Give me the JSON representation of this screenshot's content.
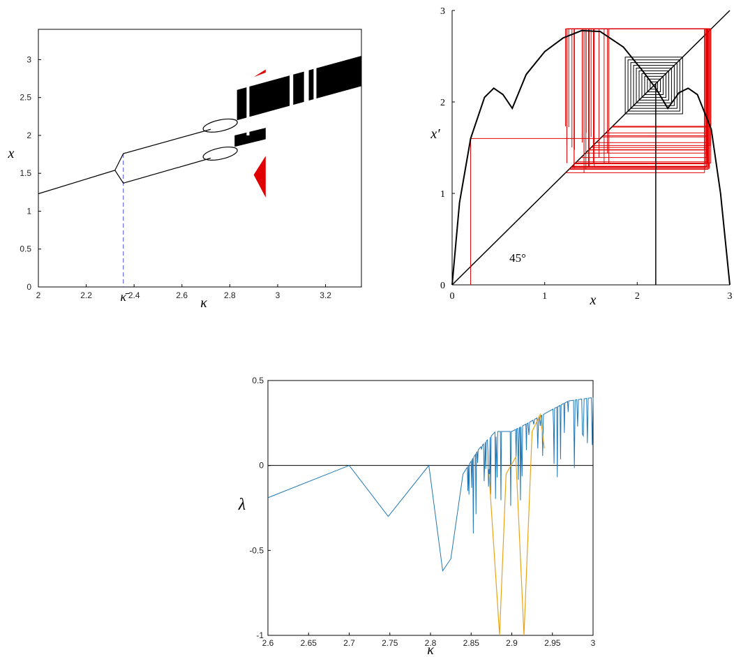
{
  "chart_data": [
    {
      "type": "scatter",
      "xlabel": "κ",
      "ylabel": "x",
      "xlim": [
        2,
        3.35
      ],
      "ylim": [
        0,
        3.4
      ],
      "xticks": [
        "2",
        "2.2",
        "2.4",
        "2.6",
        "2.8",
        "3",
        "3.2"
      ],
      "yticks": [
        "0",
        "0.5",
        "1",
        "1.5",
        "2",
        "2.5",
        "3"
      ],
      "marker_label": "κ̄",
      "marker_x": 2.355,
      "colors": {
        "main": "#000000",
        "highlight": "#e00000",
        "marker": "#4a4ad0"
      },
      "branches": {
        "single": [
          [
            2.0,
            1.23
          ],
          [
            2.32,
            1.54
          ]
        ],
        "period2_upper": [
          [
            2.32,
            1.54
          ],
          [
            2.355,
            1.76
          ],
          [
            2.72,
            2.08
          ]
        ],
        "period2_lower": [
          [
            2.32,
            1.54
          ],
          [
            2.355,
            1.37
          ],
          [
            2.72,
            1.7
          ]
        ]
      }
    },
    {
      "type": "line",
      "xlabel": "x",
      "ylabel": "x′",
      "xlim": [
        0,
        3
      ],
      "ylim": [
        0,
        3
      ],
      "xticks": [
        "0",
        "1",
        "2",
        "3"
      ],
      "yticks": [
        "0",
        "1",
        "2",
        "3"
      ],
      "annotation": "45°",
      "colors": {
        "map": "#000000",
        "cobweb": "#e00000"
      },
      "map_curve": [
        [
          0,
          0
        ],
        [
          0.08,
          0.9
        ],
        [
          0.2,
          1.6
        ],
        [
          0.35,
          2.05
        ],
        [
          0.45,
          2.15
        ],
        [
          0.55,
          2.08
        ],
        [
          0.65,
          1.93
        ],
        [
          0.8,
          2.3
        ],
        [
          1.0,
          2.55
        ],
        [
          1.2,
          2.7
        ],
        [
          1.4,
          2.78
        ],
        [
          1.6,
          2.77
        ],
        [
          1.85,
          2.6
        ],
        [
          2.05,
          2.35
        ],
        [
          2.2,
          2.15
        ],
        [
          2.33,
          1.93
        ],
        [
          2.45,
          2.1
        ],
        [
          2.55,
          2.15
        ],
        [
          2.65,
          2.08
        ],
        [
          2.8,
          1.7
        ],
        [
          2.9,
          1.0
        ],
        [
          2.97,
          0.3
        ],
        [
          3.0,
          0
        ]
      ]
    },
    {
      "type": "line",
      "xlabel": "κ",
      "ylabel": "λ",
      "xlim": [
        2.6,
        3.0
      ],
      "ylim": [
        -1,
        0.5
      ],
      "xticks": [
        "2.6",
        "2.65",
        "2.7",
        "2.75",
        "2.8",
        "2.85",
        "2.9",
        "2.95",
        "3"
      ],
      "yticks": [
        "-1",
        "-0.5",
        "0",
        "0.5"
      ],
      "series": [
        {
          "color": "#1f77b4",
          "values": [
            [
              2.6,
              -0.19
            ],
            [
              2.7,
              0.0
            ],
            [
              2.748,
              -0.3
            ],
            [
              2.798,
              0.0
            ],
            [
              2.815,
              -0.62
            ],
            [
              2.825,
              -0.55
            ],
            [
              2.84,
              -0.05
            ],
            [
              2.86,
              0.1
            ],
            [
              2.88,
              0.2
            ],
            [
              2.9,
              0.2
            ],
            [
              2.92,
              0.25
            ],
            [
              2.95,
              0.33
            ],
            [
              2.97,
              0.38
            ],
            [
              3.0,
              0.4
            ]
          ]
        },
        {
          "color": "#e8a317",
          "values": [
            [
              2.872,
              -0.05
            ],
            [
              2.885,
              -1.0
            ],
            [
              2.893,
              -0.05
            ],
            [
              2.905,
              0.05
            ],
            [
              2.915,
              -1.0
            ],
            [
              2.925,
              0.2
            ],
            [
              2.935,
              0.3
            ],
            [
              2.94,
              0.1
            ]
          ]
        }
      ]
    }
  ]
}
